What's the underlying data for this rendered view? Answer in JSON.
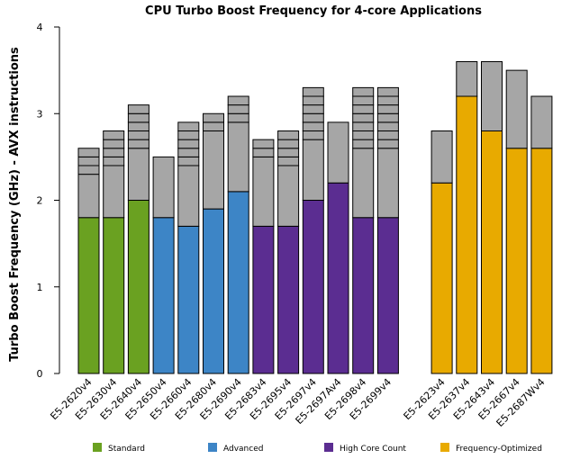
{
  "chart_data": {
    "type": "stacked-bar",
    "title": "CPU Turbo Boost Frequency for 4-core Applications",
    "y_label": "Turbo Boost Frequency (GHz) - AVX instructions",
    "categories": [
      "E5-2620v4",
      "E5-2630v4",
      "E5-2640v4",
      "E5-2650v4",
      "E5-2660v4",
      "E5-2680v4",
      "E5-2690v4",
      "E5-2683v4",
      "E5-2695v4",
      "E5-2697v4",
      "E5-2697Av4",
      "E5-2698v4",
      "E5-2699v4",
      "E5-2623v4",
      "E5-2637v4",
      "E5-2643v4",
      "E5-2667v4",
      "E5-2687Wv4"
    ],
    "groups": [
      0,
      0,
      0,
      1,
      1,
      1,
      1,
      2,
      2,
      2,
      2,
      2,
      2,
      3,
      3,
      3,
      3,
      3
    ],
    "legend": [
      {
        "name": "Standard",
        "color": "#6aa121"
      },
      {
        "name": "Advanced",
        "color": "#3d85c6"
      },
      {
        "name": "High Core Count",
        "color": "#5b2d91"
      },
      {
        "name": "Frequency-Optimized",
        "color": "#e8aa00"
      }
    ],
    "base_values": [
      1.8,
      1.8,
      2.0,
      1.8,
      1.7,
      1.9,
      2.1,
      1.7,
      1.7,
      2.0,
      2.2,
      1.8,
      1.8,
      2.2,
      3.2,
      2.8,
      2.6,
      2.6
    ],
    "turbo_color": "#a6a6a6",
    "turbo_segments": [
      [
        0.5,
        0.1,
        0.1,
        0.1
      ],
      [
        0.6,
        0.1,
        0.1,
        0.1,
        0.1
      ],
      [
        0.6,
        0.1,
        0.1,
        0.1,
        0.1,
        0.1
      ],
      [
        0.7
      ],
      [
        0.7,
        0.1,
        0.1,
        0.1,
        0.1,
        0.1
      ],
      [
        0.9,
        0.1,
        0.1
      ],
      [
        0.8,
        0.1,
        0.1,
        0.1
      ],
      [
        0.8,
        0.1,
        0.1
      ],
      [
        0.7,
        0.1,
        0.1,
        0.1,
        0.1
      ],
      [
        0.7,
        0.1,
        0.1,
        0.1,
        0.1,
        0.1,
        0.1
      ],
      [
        0.7
      ],
      [
        0.8,
        0.1,
        0.1,
        0.1,
        0.1,
        0.1,
        0.1,
        0.1
      ],
      [
        0.8,
        0.1,
        0.1,
        0.1,
        0.1,
        0.1,
        0.1,
        0.1
      ],
      [
        0.6
      ],
      [
        0.4
      ],
      [
        0.8
      ],
      [
        0.9
      ],
      [
        0.6
      ]
    ],
    "ylim": [
      0,
      4
    ],
    "yticks": [
      0,
      1,
      2,
      3,
      4
    ]
  }
}
